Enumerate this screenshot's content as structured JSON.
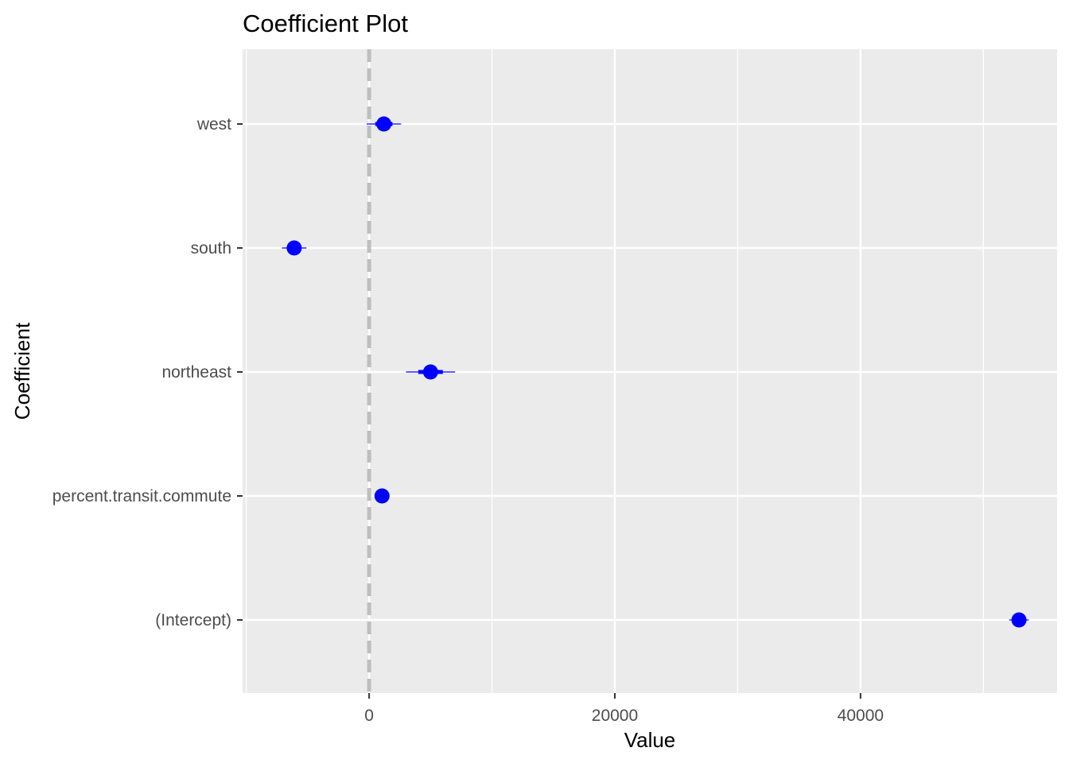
{
  "chart_data": {
    "type": "scatter",
    "title": "Coefficient Plot",
    "xlabel": "Value",
    "ylabel": "Coefficient",
    "xlim": [
      -10300,
      56000
    ],
    "xticks": [
      0,
      20000,
      40000
    ],
    "xtick_labels": [
      "0",
      "20000",
      "40000"
    ],
    "categories": [
      "(Intercept)",
      "percent.transit.commute",
      "northeast",
      "south",
      "west"
    ],
    "points": [
      {
        "coefficient": "(Intercept)",
        "value": 52900,
        "inner": [
          52500,
          53300
        ],
        "outer": [
          52100,
          53700
        ]
      },
      {
        "coefficient": "percent.transit.commute",
        "value": 1050,
        "inner": [
          950,
          1150
        ],
        "outer": [
          850,
          1250
        ]
      },
      {
        "coefficient": "northeast",
        "value": 5000,
        "inner": [
          4000,
          6000
        ],
        "outer": [
          3000,
          7000
        ]
      },
      {
        "coefficient": "south",
        "value": -6100,
        "inner": [
          -6600,
          -5600
        ],
        "outer": [
          -7100,
          -5100
        ]
      },
      {
        "coefficient": "west",
        "value": 1200,
        "inner": [
          500,
          1900
        ],
        "outer": [
          -200,
          2600
        ]
      }
    ],
    "reference_line": 0,
    "grid": true,
    "colors": {
      "panel": "#ebebeb",
      "grid": "#ffffff",
      "point": "#0000ff",
      "reference": "#bebebe"
    }
  }
}
